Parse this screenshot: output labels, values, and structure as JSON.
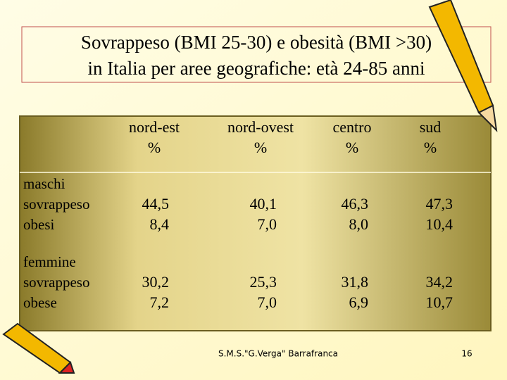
{
  "title": [
    "Sovrappeso (BMI 25-30) e obesità (BMI >30)",
    "in Italia per aree geografiche: età 24-85 anni"
  ],
  "table": {
    "header": [
      [
        "nord-est",
        "%"
      ],
      [
        "nord-ovest",
        "%"
      ],
      [
        "centro",
        "%"
      ],
      [
        "sud",
        "%"
      ]
    ],
    "rows": [
      {
        "label": [
          "maschi",
          "sovrappeso",
          "obesi"
        ],
        "cells": [
          [
            "44,5",
            "8,4"
          ],
          [
            "40,1",
            "7,0"
          ],
          [
            "46,3",
            "8,0"
          ],
          [
            "47,3",
            "10,4"
          ]
        ]
      },
      {
        "label": [
          "femmine",
          "sovrappeso",
          "obese"
        ],
        "cells": [
          [
            "30,2",
            "7,2"
          ],
          [
            "25,3",
            "7,0"
          ],
          [
            "31,8",
            "6,9"
          ],
          [
            "34,2",
            "10,7"
          ]
        ]
      }
    ]
  },
  "footer": "S.M.S.\"G.Verga\" Barrafranca",
  "page_number": "16"
}
